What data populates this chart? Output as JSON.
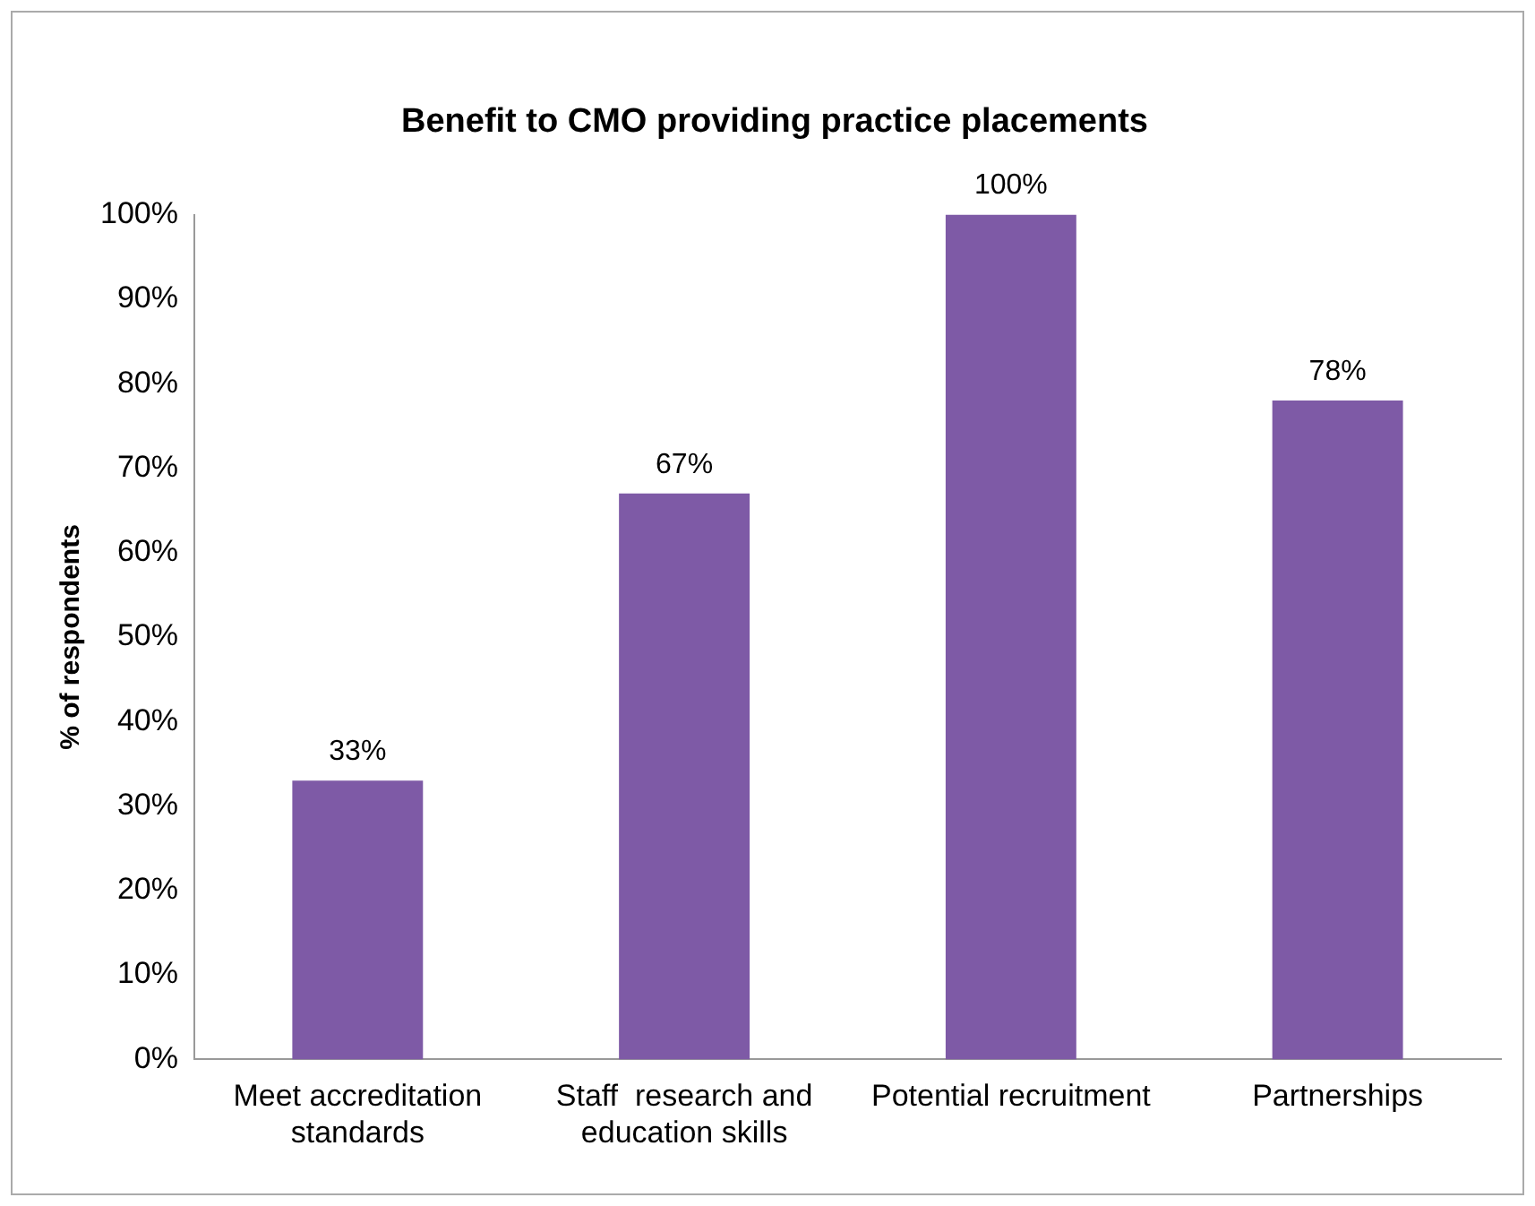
{
  "chart_data": {
    "type": "bar",
    "title": "Benefit to CMO providing practice placements",
    "ylabel": "% of respondents",
    "categories": [
      "Meet accreditation standards",
      "Staff  research and education skills",
      "Potential recruitment",
      "Partnerships"
    ],
    "values": [
      33,
      67,
      100,
      78
    ],
    "value_labels": [
      "33%",
      "67%",
      "100%",
      "78%"
    ],
    "color": "#7e5aa6",
    "ylim": [
      0,
      100
    ],
    "yticks": [
      {
        "value": 0,
        "label": "0%"
      },
      {
        "value": 10,
        "label": "10%"
      },
      {
        "value": 20,
        "label": "20%"
      },
      {
        "value": 30,
        "label": "30%"
      },
      {
        "value": 40,
        "label": "40%"
      },
      {
        "value": 50,
        "label": "50%"
      },
      {
        "value": 60,
        "label": "60%"
      },
      {
        "value": 70,
        "label": "70%"
      },
      {
        "value": 80,
        "label": "80%"
      },
      {
        "value": 90,
        "label": "90%"
      },
      {
        "value": 100,
        "label": "100%"
      }
    ],
    "grid": false,
    "legend": false
  }
}
